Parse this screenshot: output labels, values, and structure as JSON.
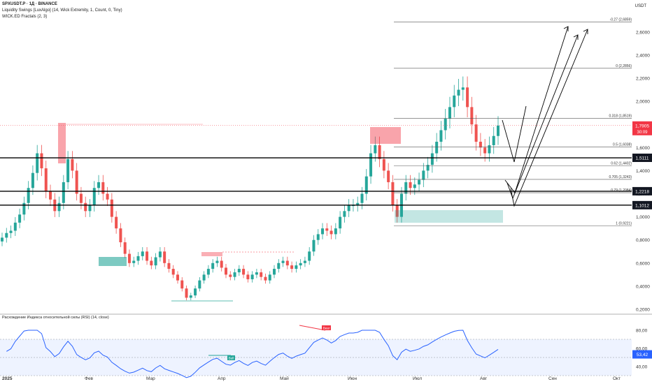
{
  "header": {
    "symbol_line": "SPXUSDT.P · 1Д · BINANCE",
    "indicator1": "Liquidity Swings [LuxAlgo] (14, Wick Extremity, 1, Count, 0, Tiny)",
    "indicator2": "WICK.ED Fractals (2, 3)",
    "currency": "USDT"
  },
  "price_axis": {
    "ticks": [
      "2,6000",
      "2,4000",
      "2,2000",
      "2,0000",
      "1,8000",
      "1,6000",
      "1,4000",
      "1,2000",
      "1,0000",
      "0,8000",
      "0,6000",
      "0,4000",
      "0,2000"
    ],
    "current_price": "1,7905",
    "countdown": "30:09",
    "level_labels": [
      "1,5111",
      "1,2218",
      "1,1012"
    ],
    "accent_red": "#f23645",
    "level_badge_color": "#131722"
  },
  "fib_levels": [
    {
      "label": "-0.27 (2,6859)",
      "price": 2.6859
    },
    {
      "label": "0 (2,2856)",
      "price": 2.2856
    },
    {
      "label": "0.318 (1,8519)",
      "price": 1.8519
    },
    {
      "label": "0.5 (1,6038)",
      "price": 1.6038
    },
    {
      "label": "0.62 (1,4402)",
      "price": 1.4402
    },
    {
      "label": "0.705 (1,3243)",
      "price": 1.3243
    },
    {
      "label": "0.79 (1,2084)",
      "price": 1.2084
    },
    {
      "label": "1 (0,9221)",
      "price": 0.9221
    }
  ],
  "rsi": {
    "title": "Расхождение Индекса относительной силы (RSI) (14, close)",
    "ticks": [
      "80,00",
      "60,00",
      "40,00"
    ],
    "value": "53,42",
    "bull_label": "Bull",
    "bear_label": "Bear",
    "line_color": "#2962ff"
  },
  "time_axis": [
    "2025",
    "Фев",
    "Мар",
    "Апр",
    "Май",
    "Июн",
    "Июл",
    "Авг",
    "Сен",
    "Окт"
  ],
  "chart_data": {
    "type": "candlestick",
    "x_labels": [
      "2025",
      "Фев",
      "Мар",
      "Апр",
      "Май",
      "Июн",
      "Июл",
      "Авг",
      "Сен",
      "Окт"
    ],
    "y_range": [
      0.12,
      2.75
    ],
    "horizontal_levels": [
      1.5111,
      1.2218,
      1.1012
    ],
    "closes_approx": [
      0.82,
      0.86,
      0.88,
      0.95,
      1.02,
      1.12,
      1.25,
      1.38,
      1.55,
      1.42,
      1.22,
      1.15,
      1.05,
      1.12,
      1.3,
      1.5,
      1.4,
      1.2,
      1.12,
      1.05,
      1.1,
      1.25,
      1.3,
      1.2,
      1.15,
      1.0,
      0.9,
      0.78,
      0.68,
      0.6,
      0.62,
      0.66,
      0.7,
      0.62,
      0.58,
      0.65,
      0.7,
      0.6,
      0.55,
      0.5,
      0.45,
      0.38,
      0.3,
      0.32,
      0.38,
      0.45,
      0.5,
      0.55,
      0.6,
      0.62,
      0.56,
      0.5,
      0.48,
      0.52,
      0.55,
      0.5,
      0.46,
      0.5,
      0.52,
      0.48,
      0.45,
      0.5,
      0.55,
      0.6,
      0.62,
      0.58,
      0.55,
      0.58,
      0.6,
      0.62,
      0.7,
      0.8,
      0.85,
      0.9,
      0.88,
      0.85,
      0.9,
      1.0,
      1.05,
      1.1,
      1.1,
      1.12,
      1.2,
      1.35,
      1.55,
      1.62,
      1.5,
      1.4,
      1.3,
      1.1,
      1.0,
      1.2,
      1.3,
      1.25,
      1.28,
      1.32,
      1.4,
      1.45,
      1.55,
      1.65,
      1.75,
      1.85,
      1.95,
      2.05,
      2.1,
      2.12,
      1.95,
      1.8,
      1.65,
      1.6,
      1.55,
      1.62,
      1.7,
      1.79
    ]
  }
}
